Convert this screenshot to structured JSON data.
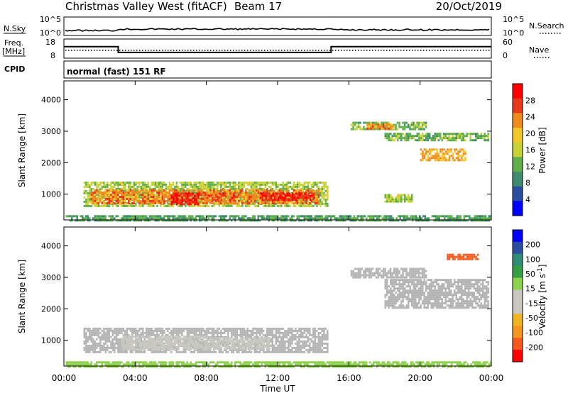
{
  "header": {
    "station": "Christmas Valley West (fitACF)",
    "beam": "Beam 17",
    "date": "20/Oct/2019"
  },
  "info_panels": {
    "nsky_label": "N.Sky",
    "nsearch_label": "N.Search",
    "log_top": "10^5",
    "log_bottom": "10^0",
    "freq_label": "Freq.",
    "freq_unit": "[MHz]",
    "freq_ticks": [
      "18",
      "8"
    ],
    "nave_label": "Nave",
    "nave_ticks": [
      "60",
      "0"
    ],
    "cpid_label": "CPID",
    "cpid_text": "normal (fast) 151 RF",
    "freq_series": {
      "t": [
        0,
        3.05,
        3.05,
        15.0,
        15.0,
        24
      ],
      "mhz": [
        14,
        14,
        11,
        11,
        14,
        14
      ]
    }
  },
  "colors": {
    "power_scale": [
      "#0000ff",
      "#2c4ea2",
      "#3e8c6e",
      "#5fb04a",
      "#c8d234",
      "#f4c62a",
      "#f08a1e",
      "#e83a1a",
      "#ff0000"
    ],
    "velocity_scale": [
      "#ff0000",
      "#f55a1c",
      "#f5961e",
      "#f0b421",
      "#c8c8c0",
      "#c8c8c0",
      "#8cd24a",
      "#34a043",
      "#2f8c75",
      "#2c4ea2",
      "#0000ff"
    ],
    "ground_scatter": "#b4b4b4"
  },
  "chart_data": [
    {
      "type": "heatmap",
      "name": "power",
      "ylabel": "Slant Range [km]",
      "xlabel": "Time UT",
      "x_ticks": [
        "00:00",
        "04:00",
        "08:00",
        "12:00",
        "16:00",
        "20:00",
        "00:00"
      ],
      "xlim_hours": [
        0,
        24
      ],
      "ylim_km": [
        180,
        4600
      ],
      "y_ticks": [
        1000,
        2000,
        3000,
        4000
      ],
      "colorbar": {
        "label": "Power [dB]",
        "ticks": [
          "28",
          "24",
          "20",
          "16",
          "12",
          "8",
          "4"
        ],
        "range": [
          0,
          30
        ]
      },
      "regions": [
        {
          "t0": 1.1,
          "t1": 14.8,
          "r0": 650,
          "r1": 1400,
          "value": 14
        },
        {
          "t0": 1.5,
          "t1": 14.3,
          "r0": 700,
          "r1": 1150,
          "value": 22
        },
        {
          "t0": 6.0,
          "t1": 7.5,
          "r0": 700,
          "r1": 1050,
          "value": 27
        },
        {
          "t0": 8.0,
          "t1": 9.5,
          "r0": 800,
          "r1": 1050,
          "value": 24
        },
        {
          "t0": 11.0,
          "t1": 14.0,
          "r0": 800,
          "r1": 1050,
          "value": 27
        },
        {
          "t0": 16.1,
          "t1": 20.3,
          "r0": 3050,
          "r1": 3300,
          "value": 12
        },
        {
          "t0": 17.0,
          "t1": 18.5,
          "r0": 3100,
          "r1": 3250,
          "value": 22
        },
        {
          "t0": 18.0,
          "t1": 23.8,
          "r0": 2700,
          "r1": 2950,
          "value": 12
        },
        {
          "t0": 20.0,
          "t1": 22.5,
          "r0": 2100,
          "r1": 2450,
          "value": 20
        },
        {
          "t0": 18.0,
          "t1": 19.5,
          "r0": 750,
          "r1": 1000,
          "value": 14
        },
        {
          "t0": 0.1,
          "t1": 24.0,
          "r0": 180,
          "r1": 330,
          "value": 10
        }
      ]
    },
    {
      "type": "heatmap",
      "name": "velocity",
      "ylabel": "Slant Range [km]",
      "xlabel": "Time UT",
      "x_ticks": [
        "00:00",
        "04:00",
        "08:00",
        "12:00",
        "16:00",
        "20:00",
        "00:00"
      ],
      "xlim_hours": [
        0,
        24
      ],
      "ylim_km": [
        180,
        4600
      ],
      "y_ticks": [
        1000,
        2000,
        3000,
        4000
      ],
      "colorbar": {
        "label": "Velocity [m s^-1]",
        "ticks": [
          "200",
          "100",
          "50",
          "15",
          "-15",
          "-50",
          "-100",
          "-200"
        ],
        "range": [
          -250,
          250
        ]
      },
      "regions": [
        {
          "t0": 1.1,
          "t1": 14.8,
          "r0": 650,
          "r1": 1400,
          "value": 0
        },
        {
          "t0": 3.2,
          "t1": 8.0,
          "r0": 700,
          "r1": 1150,
          "value": -40
        },
        {
          "t0": 8.0,
          "t1": 11.5,
          "r0": 750,
          "r1": 1100,
          "value": -40
        },
        {
          "t0": 16.1,
          "t1": 20.3,
          "r0": 3000,
          "r1": 3300,
          "value": 0
        },
        {
          "t0": 18.0,
          "t1": 23.8,
          "r0": 2050,
          "r1": 2950,
          "value": 0
        },
        {
          "t0": 21.5,
          "t1": 23.2,
          "r0": 3550,
          "r1": 3750,
          "value": -200
        },
        {
          "t0": 0.1,
          "t1": 24.0,
          "r0": 180,
          "r1": 330,
          "value": 30
        }
      ]
    }
  ]
}
